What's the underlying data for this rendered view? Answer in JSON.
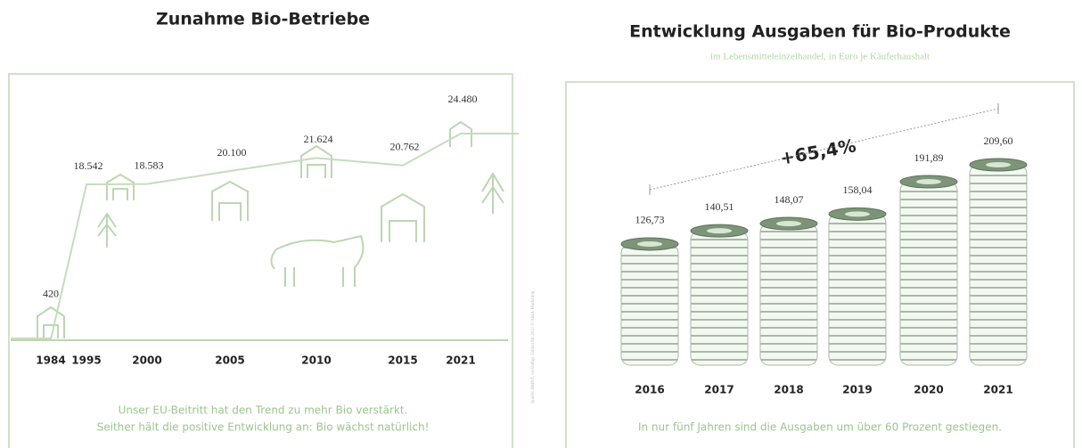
{
  "chart_data": [
    {
      "type": "line",
      "title": "Zunahme Bio-Betriebe",
      "categories": [
        "1984",
        "1995",
        "2000",
        "2005",
        "2010",
        "2015",
        "2021"
      ],
      "values": [
        420,
        18542,
        18583,
        20100,
        21624,
        20762,
        24480
      ],
      "value_labels": [
        "420",
        "18.542",
        "18.583",
        "20.100",
        "21.624",
        "20.762",
        "24.480"
      ],
      "color": "#c5dcbc",
      "footnote": [
        "Unser EU-Beitritt hat den Trend zu mehr Bio verstärkt.",
        "Seither hält die positive Entwicklung an: Bio wächst natürlich!"
      ],
      "source": "Quelle: BMNT, vorläufige Zahlen für 2021 © AMA-Marketing"
    },
    {
      "type": "coinbar",
      "title": "Entwicklung Ausgaben für Bio-Produkte",
      "subtitle": "im Lebensmitteleinzelhandel, in Euro je Käuferhaushalt",
      "categories": [
        "2016",
        "2017",
        "2018",
        "2019",
        "2020",
        "2021"
      ],
      "values": [
        126.73,
        140.51,
        148.07,
        158.04,
        191.89,
        209.6
      ],
      "value_labels": [
        "126,73",
        "140,51",
        "148,07",
        "158,04",
        "191,89",
        "209,60"
      ],
      "color": "#a9b9a5",
      "annotation": "+65,4%",
      "footnote": "In nur fünf Jahren sind die Ausgaben um über 60 Prozent gestiegen."
    }
  ]
}
